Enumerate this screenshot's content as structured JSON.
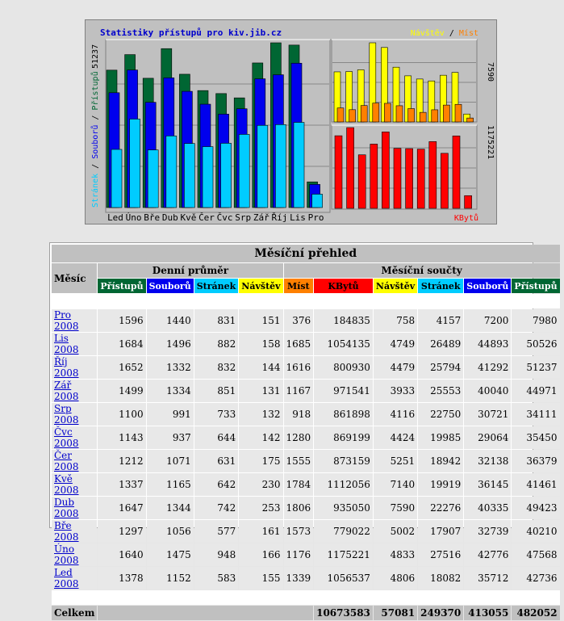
{
  "chart": {
    "title": "Statistiky přístupů pro kiv.jib.cz",
    "legend_visits": "Návštěv",
    "legend_sep": " / ",
    "legend_sites": "Míst",
    "legend_kb": "KBytů",
    "yaxis_left": {
      "pages": "Stránek",
      "sep1": " / ",
      "files": "Souborů",
      "sep2": " / ",
      "hits": "Přístupů"
    },
    "left_max_label": "51237",
    "right_top_max_label": "7590",
    "right_bottom_max_label": "1175221",
    "colors": {
      "hits": "#006633",
      "files": "#0000ee",
      "pages": "#00ccff",
      "visits": "#ffff00",
      "sites": "#ff8000",
      "kbytes": "#ff0000"
    }
  },
  "chart_data": {
    "type": "bar",
    "categories": [
      "Led",
      "Úno",
      "Bře",
      "Dub",
      "Kvě",
      "Čer",
      "Čvc",
      "Srp",
      "Zář",
      "Říj",
      "Lis",
      "Pro"
    ],
    "series": [
      {
        "name": "Přístupů",
        "values": [
          42736,
          47568,
          40210,
          49423,
          41461,
          36379,
          35450,
          34111,
          44971,
          51237,
          50526,
          7980
        ]
      },
      {
        "name": "Souborů",
        "values": [
          35712,
          42776,
          32739,
          40335,
          36145,
          32138,
          29064,
          30721,
          40040,
          41292,
          44893,
          7200
        ]
      },
      {
        "name": "Stránek",
        "values": [
          18082,
          27516,
          17907,
          22276,
          19919,
          18942,
          19985,
          22750,
          25553,
          25794,
          26489,
          4157
        ]
      },
      {
        "name": "Návštěv",
        "values": [
          4806,
          4833,
          5002,
          7590,
          7140,
          5251,
          4424,
          4116,
          3933,
          4479,
          4749,
          758
        ]
      },
      {
        "name": "Míst",
        "values": [
          1339,
          1176,
          1573,
          1806,
          1784,
          1555,
          1280,
          918,
          1167,
          1616,
          1685,
          376
        ]
      },
      {
        "name": "KBytů",
        "values": [
          1056537,
          1175221,
          779022,
          935050,
          1112056,
          873159,
          869199,
          861898,
          971541,
          800930,
          1054135,
          184835
        ]
      }
    ],
    "title": "Statistiky přístupů pro kiv.jib.cz"
  },
  "table": {
    "title": "Měsíční přehled",
    "month_header": "Měsíc",
    "daily_header": "Denní průměr",
    "monthly_header": "Měsíční součty",
    "col_hits": "Přístupů",
    "col_files": "Souborů",
    "col_pages": "Stránek",
    "col_visits": "Návštěv",
    "col_sites": "Míst",
    "col_kb": "KBytů",
    "rows": [
      {
        "month": "Pro 2008",
        "d_hits": "1596",
        "d_files": "1440",
        "d_pages": "831",
        "d_visits": "151",
        "m_sites": "376",
        "m_kb": "184835",
        "m_visits": "758",
        "m_pages": "4157",
        "m_files": "7200",
        "m_hits": "7980"
      },
      {
        "month": "Lis 2008",
        "d_hits": "1684",
        "d_files": "1496",
        "d_pages": "882",
        "d_visits": "158",
        "m_sites": "1685",
        "m_kb": "1054135",
        "m_visits": "4749",
        "m_pages": "26489",
        "m_files": "44893",
        "m_hits": "50526"
      },
      {
        "month": "Říj 2008",
        "d_hits": "1652",
        "d_files": "1332",
        "d_pages": "832",
        "d_visits": "144",
        "m_sites": "1616",
        "m_kb": "800930",
        "m_visits": "4479",
        "m_pages": "25794",
        "m_files": "41292",
        "m_hits": "51237"
      },
      {
        "month": "Zář 2008",
        "d_hits": "1499",
        "d_files": "1334",
        "d_pages": "851",
        "d_visits": "131",
        "m_sites": "1167",
        "m_kb": "971541",
        "m_visits": "3933",
        "m_pages": "25553",
        "m_files": "40040",
        "m_hits": "44971"
      },
      {
        "month": "Srp 2008",
        "d_hits": "1100",
        "d_files": "991",
        "d_pages": "733",
        "d_visits": "132",
        "m_sites": "918",
        "m_kb": "861898",
        "m_visits": "4116",
        "m_pages": "22750",
        "m_files": "30721",
        "m_hits": "34111"
      },
      {
        "month": "Čvc 2008",
        "d_hits": "1143",
        "d_files": "937",
        "d_pages": "644",
        "d_visits": "142",
        "m_sites": "1280",
        "m_kb": "869199",
        "m_visits": "4424",
        "m_pages": "19985",
        "m_files": "29064",
        "m_hits": "35450"
      },
      {
        "month": "Čer 2008",
        "d_hits": "1212",
        "d_files": "1071",
        "d_pages": "631",
        "d_visits": "175",
        "m_sites": "1555",
        "m_kb": "873159",
        "m_visits": "5251",
        "m_pages": "18942",
        "m_files": "32138",
        "m_hits": "36379"
      },
      {
        "month": "Kvě 2008",
        "d_hits": "1337",
        "d_files": "1165",
        "d_pages": "642",
        "d_visits": "230",
        "m_sites": "1784",
        "m_kb": "1112056",
        "m_visits": "7140",
        "m_pages": "19919",
        "m_files": "36145",
        "m_hits": "41461"
      },
      {
        "month": "Dub 2008",
        "d_hits": "1647",
        "d_files": "1344",
        "d_pages": "742",
        "d_visits": "253",
        "m_sites": "1806",
        "m_kb": "935050",
        "m_visits": "7590",
        "m_pages": "22276",
        "m_files": "40335",
        "m_hits": "49423"
      },
      {
        "month": "Bře 2008",
        "d_hits": "1297",
        "d_files": "1056",
        "d_pages": "577",
        "d_visits": "161",
        "m_sites": "1573",
        "m_kb": "779022",
        "m_visits": "5002",
        "m_pages": "17907",
        "m_files": "32739",
        "m_hits": "40210"
      },
      {
        "month": "Úno 2008",
        "d_hits": "1640",
        "d_files": "1475",
        "d_pages": "948",
        "d_visits": "166",
        "m_sites": "1176",
        "m_kb": "1175221",
        "m_visits": "4833",
        "m_pages": "27516",
        "m_files": "42776",
        "m_hits": "47568"
      },
      {
        "month": "Led 2008",
        "d_hits": "1378",
        "d_files": "1152",
        "d_pages": "583",
        "d_visits": "155",
        "m_sites": "1339",
        "m_kb": "1056537",
        "m_visits": "4806",
        "m_pages": "18082",
        "m_files": "35712",
        "m_hits": "42736"
      }
    ],
    "total": {
      "label": "Celkem",
      "kb": "10673583",
      "visits": "57081",
      "pages": "249370",
      "files": "413055",
      "hits": "482052"
    }
  }
}
